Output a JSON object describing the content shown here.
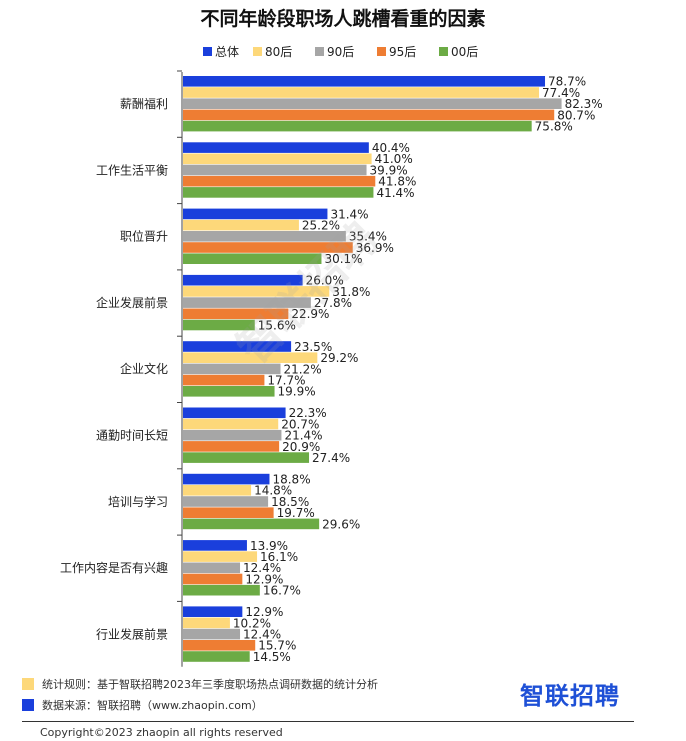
{
  "chart_data": {
    "type": "bar",
    "orientation": "horizontal",
    "title": "不同年龄段职场人跳槽看重的因素",
    "categories": [
      "薪酬福利",
      "工作生活平衡",
      "职位晋升",
      "企业发展前景",
      "企业文化",
      "通勤时间长短",
      "培训与学习",
      "工作内容是否有兴趣",
      "行业发展前景"
    ],
    "series": [
      {
        "name": "总体",
        "color": "#1a3fdc",
        "values": [
          78.7,
          40.4,
          31.4,
          26.0,
          23.5,
          22.3,
          18.8,
          13.9,
          12.9
        ]
      },
      {
        "name": "80后",
        "color": "#fdd87a",
        "values": [
          77.4,
          41.0,
          25.2,
          31.8,
          29.2,
          20.7,
          14.8,
          16.1,
          10.2
        ]
      },
      {
        "name": "90后",
        "color": "#a6a6a6",
        "values": [
          82.3,
          39.9,
          35.4,
          27.8,
          21.2,
          21.4,
          18.5,
          12.4,
          12.4
        ]
      },
      {
        "name": "95后",
        "color": "#ee7d33",
        "values": [
          80.7,
          41.8,
          36.9,
          22.9,
          17.7,
          20.9,
          19.7,
          12.9,
          15.7
        ]
      },
      {
        "name": "00后",
        "color": "#6cab45",
        "values": [
          75.8,
          41.4,
          30.1,
          15.6,
          19.9,
          27.4,
          29.6,
          16.7,
          14.5
        ]
      }
    ],
    "value_suffix": "%",
    "xlim": [
      0,
      100
    ],
    "legend_position": "top",
    "grid": false
  },
  "watermark": "智联招聘",
  "footer": {
    "method_label": "统计规则：基于智联招聘2023年三季度职场热点调研数据的统计分析",
    "source_label": "数据来源：智联招聘（www.zhaopin.com）",
    "method_color": "#fdd87a",
    "source_color": "#1a3fdc",
    "brand": "智联招聘",
    "copyright": "Copyright©2023 zhaopin all rights reserved"
  }
}
